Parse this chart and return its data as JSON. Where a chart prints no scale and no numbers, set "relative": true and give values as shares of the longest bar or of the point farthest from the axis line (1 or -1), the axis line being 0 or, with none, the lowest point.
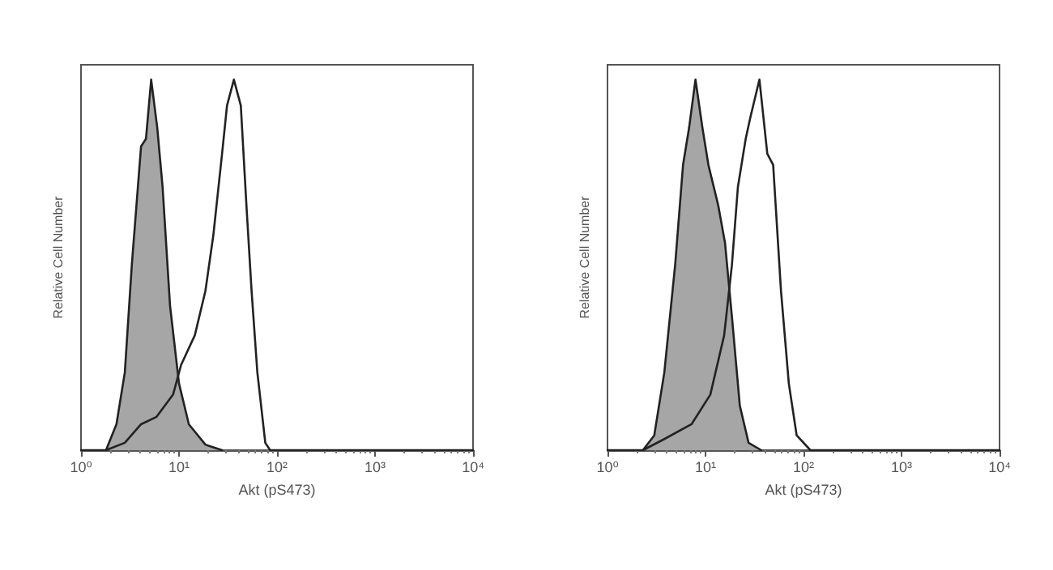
{
  "chart_data": [
    {
      "type": "line",
      "xlabel": "Akt (pS473)",
      "ylabel": "Relative Cell Number",
      "relative": true,
      "log": "x",
      "xlim": [
        1,
        10000
      ],
      "xticks": [
        {
          "value": 1,
          "label": "10⁰"
        },
        {
          "value": 10,
          "label": "10¹"
        },
        {
          "value": 100,
          "label": "10²"
        },
        {
          "value": 1000,
          "label": "10³"
        },
        {
          "value": 10000,
          "label": "10⁴"
        }
      ],
      "tick_labels": "x",
      "grid": false,
      "marker": "none",
      "line_style": "solid",
      "series": [
        {
          "type": "area",
          "color": "#a6a6a6",
          "x": [
            1.8,
            2.3,
            2.8,
            3.3,
            4.1,
            4.6,
            5.2,
            6.0,
            6.8,
            8.1,
            10,
            12.6,
            18.6,
            27.5
          ],
          "values": [
            0,
            0.07,
            0.21,
            0.5,
            0.82,
            0.84,
            1,
            0.87,
            0.71,
            0.39,
            0.18,
            0.07,
            0.015,
            0
          ]
        },
        {
          "color": "#222222",
          "x": [
            1,
            1.8,
            2.8,
            4.1,
            5.9,
            8.7,
            10.5,
            14.5,
            18.6,
            22.4,
            27.5,
            30.9,
            36.3,
            42.7,
            49,
            55,
            63,
            75.9,
            85.1,
            10000
          ],
          "values": [
            0,
            0,
            0.02,
            0.07,
            0.09,
            0.15,
            0.23,
            0.31,
            0.43,
            0.58,
            0.8,
            0.93,
            1,
            0.93,
            0.65,
            0.43,
            0.21,
            0.02,
            0,
            0
          ]
        }
      ]
    },
    {
      "type": "line",
      "xlabel": "Akt (pS473)",
      "ylabel": "Relative Cell Number",
      "relative": true,
      "log": "x",
      "xlim": [
        1,
        10000
      ],
      "xticks": [
        {
          "value": 1,
          "label": "10⁰"
        },
        {
          "value": 10,
          "label": "10¹"
        },
        {
          "value": 100,
          "label": "10²"
        },
        {
          "value": 1000,
          "label": "10³"
        },
        {
          "value": 10000,
          "label": "10⁴"
        }
      ],
      "tick_labels": "x",
      "grid": false,
      "marker": "none",
      "line_style": "solid",
      "series": [
        {
          "type": "area",
          "color": "#a6a6a6",
          "x": [
            2.3,
            3.0,
            3.8,
            4.9,
            5.9,
            6.8,
            7.9,
            9.3,
            10.7,
            13.5,
            15.8,
            18.6,
            22.4,
            27.5,
            37
          ],
          "values": [
            0,
            0.04,
            0.21,
            0.5,
            0.77,
            0.87,
            1,
            0.87,
            0.77,
            0.66,
            0.56,
            0.36,
            0.12,
            0.02,
            0
          ]
        },
        {
          "color": "#222222",
          "x": [
            1,
            2.3,
            3.8,
            7.2,
            11.2,
            15.5,
            18.6,
            21.4,
            25.7,
            28.8,
            35.5,
            42.7,
            49,
            58.9,
            70.8,
            85.1,
            117.5,
            10000
          ],
          "values": [
            0,
            0,
            0.03,
            0.07,
            0.15,
            0.31,
            0.5,
            0.71,
            0.84,
            0.9,
            1,
            0.8,
            0.77,
            0.43,
            0.18,
            0.04,
            0,
            0
          ]
        }
      ]
    }
  ]
}
